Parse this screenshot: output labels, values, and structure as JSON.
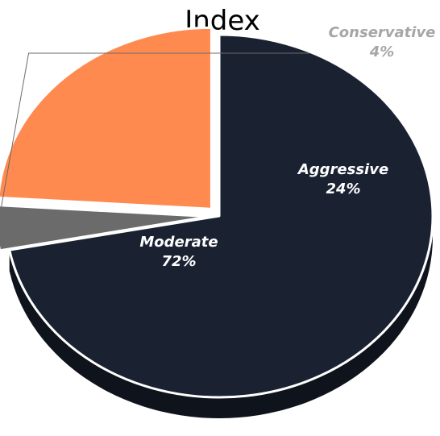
{
  "chart_data": {
    "type": "pie",
    "title": "Index",
    "slices": [
      {
        "label": "Moderate",
        "value": 72,
        "value_label": "72%",
        "color": "#1a2232",
        "label_color": "#ffffff"
      },
      {
        "label": "Conservative",
        "value": 4,
        "value_label": "4%",
        "color": "#6b6b6b",
        "label_color": "#a6a6a6"
      },
      {
        "label": "Aggressive",
        "value": 24,
        "value_label": "24%",
        "color": "#ff8a50",
        "label_color": "#ffffff"
      }
    ],
    "style": "3d-exploded",
    "legend": "none"
  }
}
